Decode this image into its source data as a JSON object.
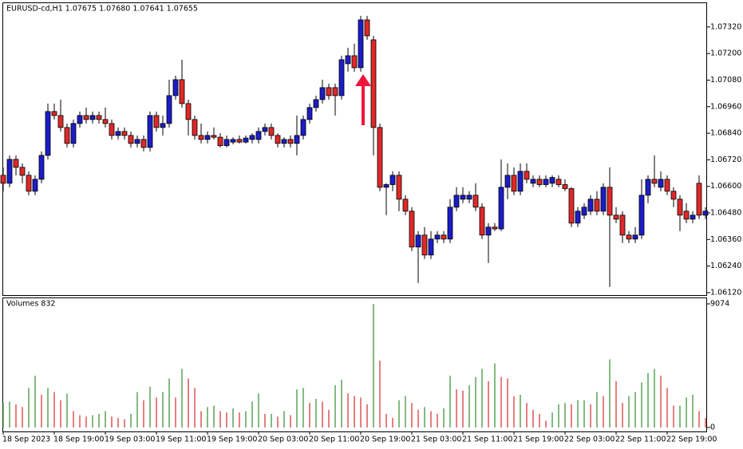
{
  "chart_data": [
    {
      "type": "candlestick",
      "title": "EURUSD-cd,H1  1.07675 1.07680 1.07641 1.07655",
      "categories": [
        "18 Sep 2023",
        null,
        null,
        null,
        null,
        null,
        null,
        null,
        "18 Sep 19:00",
        null,
        null,
        null,
        null,
        null,
        null,
        null,
        "19 Sep 03:00",
        null,
        null,
        null,
        null,
        null,
        null,
        null,
        "19 Sep 11:00",
        null,
        null,
        null,
        null,
        null,
        null,
        null,
        "19 Sep 19:00",
        null,
        null,
        null,
        null,
        null,
        null,
        null,
        "20 Sep 03:00",
        null,
        null,
        null,
        null,
        null,
        null,
        null,
        "20 Sep 11:00",
        null,
        null,
        null,
        null,
        null,
        null,
        null,
        "20 Sep 19:00",
        null,
        null,
        null,
        null,
        null,
        null,
        null,
        "21 Sep 03:00",
        null,
        null,
        null,
        null,
        null,
        null,
        null,
        "21 Sep 11:00",
        null,
        null,
        null,
        null,
        null,
        null,
        null,
        "21 Sep 19:00",
        null,
        null,
        null,
        null,
        null,
        null,
        null,
        "22 Sep 03:00",
        null,
        null,
        null,
        null,
        null,
        null,
        null,
        "22 Sep 11:00",
        null,
        null,
        null,
        null,
        null,
        null,
        null,
        "22 Sep 19:00",
        null,
        null,
        null,
        null,
        null,
        null
      ],
      "open": [
        1.0665,
        1.06614,
        1.06722,
        1.06686,
        1.0665,
        1.06578,
        1.06632,
        1.0674,
        1.06938,
        1.0692,
        1.06866,
        1.06794,
        1.06884,
        1.0692,
        1.06902,
        1.0692,
        1.06902,
        1.06884,
        1.0683,
        1.06848,
        1.0683,
        1.06794,
        1.06812,
        1.06776,
        1.0692,
        1.06866,
        1.06884,
        1.0701,
        1.07082,
        1.06974,
        1.06902,
        1.0683,
        1.06812,
        1.0683,
        1.06822,
        1.06784,
        1.068,
        1.06812,
        1.068,
        1.06812,
        1.06812,
        1.06848,
        1.06866,
        1.0683,
        1.06794,
        1.06812,
        1.06794,
        1.0683,
        1.06902,
        1.06956,
        1.06992,
        1.07046,
        1.07046,
        1.0701,
        1.07154,
        1.0719,
        1.07136,
        1.07352,
        1.07262,
        1.06866,
        1.06596,
        1.06608,
        1.0665,
        1.06542,
        1.06488,
        1.06326,
        1.0638,
        1.0629,
        1.06362,
        1.0638,
        1.06362,
        1.06506,
        1.06542,
        1.06542,
        1.0656,
        1.06506,
        1.0638,
        1.06416,
        1.06408,
        1.06596,
        1.0665,
        1.06578,
        1.06668,
        1.06614,
        1.06632,
        1.06608,
        1.06614,
        1.06632,
        1.06608,
        1.0659,
        1.06434,
        1.0647,
        1.06488,
        1.06542,
        1.06488,
        1.06596,
        1.0647,
        1.0647,
        1.0638,
        1.06362,
        1.0638,
        1.0656,
        1.06632,
        1.06596,
        1.06632,
        1.06578,
        1.06542,
        1.06488,
        1.06452,
        1.06614,
        1.0647
      ],
      "high": [
        1.06686,
        1.0674,
        1.0674,
        1.06704,
        1.06668,
        1.0665,
        1.06758,
        1.06974,
        1.06974,
        1.06992,
        1.06884,
        1.06902,
        1.06938,
        1.06956,
        1.06938,
        1.06938,
        1.06956,
        1.06902,
        1.06866,
        1.06866,
        1.06848,
        1.0683,
        1.0683,
        1.06938,
        1.06938,
        1.0692,
        1.07082,
        1.071,
        1.07172,
        1.06992,
        1.0692,
        1.06884,
        1.06848,
        1.06866,
        1.0684,
        1.0683,
        1.06822,
        1.0683,
        1.0683,
        1.0684,
        1.06866,
        1.06884,
        1.06884,
        1.0684,
        1.06822,
        1.0683,
        1.0692,
        1.0692,
        1.06974,
        1.0701,
        1.07082,
        1.07064,
        1.07064,
        1.0719,
        1.07226,
        1.07244,
        1.0737,
        1.0737,
        1.0728,
        1.06884,
        1.06614,
        1.06668,
        1.06668,
        1.0656,
        1.06506,
        1.06398,
        1.06416,
        1.06398,
        1.06398,
        1.06398,
        1.06542,
        1.06596,
        1.06596,
        1.06578,
        1.06614,
        1.06524,
        1.06434,
        1.06434,
        1.06722,
        1.06704,
        1.06686,
        1.06704,
        1.06704,
        1.0665,
        1.0665,
        1.0665,
        1.0665,
        1.0665,
        1.06632,
        1.06596,
        1.06506,
        1.06524,
        1.0656,
        1.06578,
        1.06614,
        1.06686,
        1.06506,
        1.06488,
        1.06398,
        1.06416,
        1.06632,
        1.0665,
        1.0674,
        1.06668,
        1.0665,
        1.06596,
        1.0656,
        1.06524,
        1.06488,
        1.0665,
        1.06506
      ],
      "low": [
        1.06578,
        1.06596,
        1.0665,
        1.06614,
        1.0656,
        1.0656,
        1.06614,
        1.06722,
        1.06902,
        1.06848,
        1.06776,
        1.06776,
        1.06866,
        1.06884,
        1.06884,
        1.06884,
        1.06866,
        1.06812,
        1.06812,
        1.06812,
        1.06776,
        1.06776,
        1.06758,
        1.06758,
        1.06848,
        1.0683,
        1.06866,
        1.06992,
        1.06956,
        1.0683,
        1.06812,
        1.06794,
        1.06794,
        1.06812,
        1.06776,
        1.06776,
        1.0679,
        1.06794,
        1.06794,
        1.06794,
        1.06794,
        1.0683,
        1.06812,
        1.06776,
        1.06776,
        1.06776,
        1.0674,
        1.06812,
        1.06884,
        1.06938,
        1.06974,
        1.06992,
        1.0692,
        1.06992,
        1.07118,
        1.07118,
        1.07118,
        1.07262,
        1.0674,
        1.06578,
        1.0647,
        1.06578,
        1.06488,
        1.0647,
        1.06308,
        1.06164,
        1.06272,
        1.06272,
        1.06344,
        1.06344,
        1.06344,
        1.06488,
        1.06524,
        1.06524,
        1.06488,
        1.06362,
        1.06254,
        1.06398,
        1.06398,
        1.06542,
        1.0656,
        1.0656,
        1.06614,
        1.06596,
        1.06596,
        1.06596,
        1.06596,
        1.06596,
        1.06578,
        1.06416,
        1.06416,
        1.06452,
        1.0647,
        1.0647,
        1.0647,
        1.06146,
        1.06434,
        1.06344,
        1.06344,
        1.06344,
        1.06362,
        1.06524,
        1.06596,
        1.06578,
        1.0656,
        1.06506,
        1.06398,
        1.06434,
        1.06434,
        1.06452,
        1.06452
      ],
      "close": [
        1.06614,
        1.06722,
        1.06686,
        1.0665,
        1.06578,
        1.06632,
        1.0674,
        1.06938,
        1.0692,
        1.06866,
        1.06794,
        1.06884,
        1.0692,
        1.06902,
        1.0692,
        1.06902,
        1.06884,
        1.0683,
        1.06848,
        1.0683,
        1.06794,
        1.06812,
        1.06776,
        1.0692,
        1.06866,
        1.06884,
        1.0701,
        1.07082,
        1.06974,
        1.06902,
        1.0683,
        1.06812,
        1.0683,
        1.06822,
        1.06784,
        1.06812,
        1.06812,
        1.068,
        1.06818,
        1.0683,
        1.06848,
        1.06866,
        1.0683,
        1.06794,
        1.06812,
        1.06794,
        1.0683,
        1.06902,
        1.06956,
        1.06992,
        1.07046,
        1.0701,
        1.0701,
        1.07172,
        1.0719,
        1.07136,
        1.07352,
        1.0728,
        1.06866,
        1.06596,
        1.06608,
        1.0665,
        1.06542,
        1.06488,
        1.06326,
        1.0638,
        1.0629,
        1.06362,
        1.0638,
        1.06362,
        1.06506,
        1.0656,
        1.0656,
        1.0656,
        1.06506,
        1.0638,
        1.06416,
        1.06408,
        1.06596,
        1.0665,
        1.06578,
        1.06668,
        1.06632,
        1.06632,
        1.06608,
        1.06632,
        1.0664,
        1.06608,
        1.0659,
        1.06434,
        1.06488,
        1.06506,
        1.06542,
        1.06488,
        1.06596,
        1.0647,
        1.06452,
        1.0638,
        1.06362,
        1.0638,
        1.0656,
        1.06632,
        1.06614,
        1.06632,
        1.06578,
        1.06542,
        1.0647,
        1.06452,
        1.0647,
        1.0647,
        1.06488
      ],
      "up_color": "#1c1cc8",
      "down_color": "#e02828",
      "ylim": [
        1.06109,
        1.07431
      ],
      "yticks": [
        {
          "value": 1.0612,
          "label": "1.06120"
        },
        {
          "value": 1.0624,
          "label": "1.06240"
        },
        {
          "value": 1.0636,
          "label": "1.06360"
        },
        {
          "value": 1.0648,
          "label": "1.06480"
        },
        {
          "value": 1.066,
          "label": "1.06600"
        },
        {
          "value": 1.0672,
          "label": "1.06720"
        },
        {
          "value": 1.0684,
          "label": "1.06840"
        },
        {
          "value": 1.0696,
          "label": "1.06960"
        },
        {
          "value": 1.0708,
          "label": "1.07080"
        },
        {
          "value": 1.072,
          "label": "1.07200"
        },
        {
          "value": 1.0732,
          "label": "1.07320"
        }
      ]
    },
    {
      "type": "volume",
      "title": "Volumes 832",
      "values": [
        1800,
        1900,
        1700,
        1500,
        2900,
        3800,
        2400,
        2900,
        2600,
        2000,
        2500,
        1200,
        900,
        800,
        900,
        1000,
        1200,
        800,
        700,
        600,
        1000,
        2600,
        2000,
        3000,
        2200,
        2600,
        3600,
        2200,
        4300,
        3600,
        2900,
        1200,
        1500,
        1600,
        1200,
        1100,
        1400,
        1100,
        1200,
        1900,
        2500,
        1000,
        1000,
        800,
        1200,
        900,
        2800,
        2900,
        1800,
        2100,
        1900,
        1300,
        3100,
        3500,
        2500,
        2300,
        2200,
        1700,
        9074,
        4900,
        1000,
        700,
        2000,
        2300,
        1800,
        1300,
        1500,
        1200,
        1000,
        1400,
        3800,
        2800,
        2700,
        3100,
        3700,
        4300,
        3400,
        4700,
        3700,
        3600,
        2300,
        2400,
        1800,
        1300,
        1000,
        500,
        1100,
        1700,
        1800,
        1700,
        2000,
        2000,
        1700,
        2600,
        2300,
        5000,
        3400,
        1800,
        2300,
        2600,
        3300,
        4000,
        4300,
        3800,
        2900,
        1600,
        1600,
        2200,
        2400,
        1200,
        700
      ],
      "up_color": "#2e8b2e",
      "down_color": "#d42a2a",
      "ylim": [
        0,
        9074
      ],
      "yticks": [
        0,
        9074
      ]
    }
  ]
}
